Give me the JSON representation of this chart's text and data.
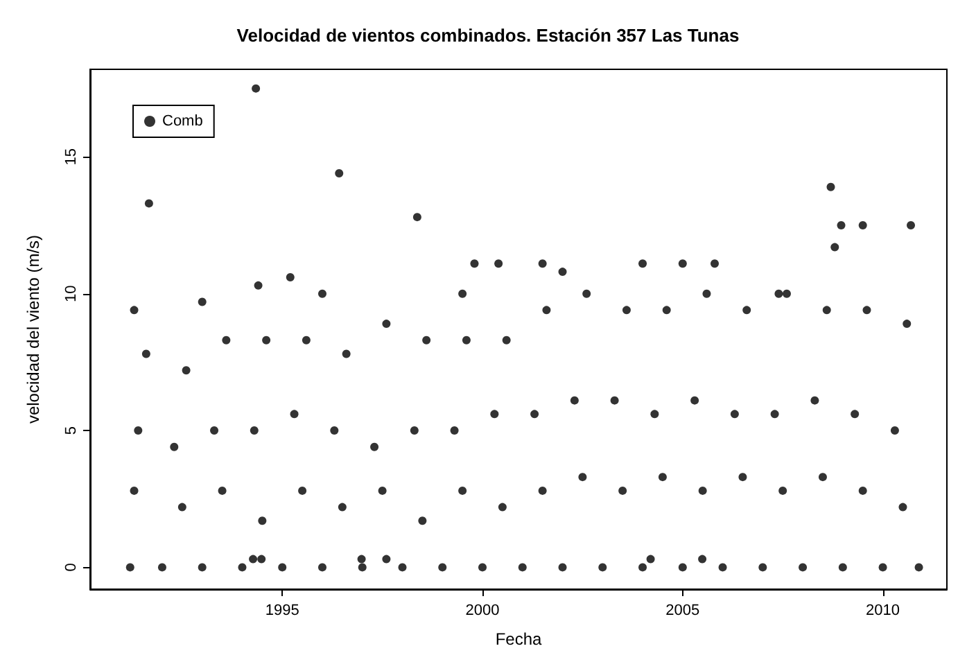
{
  "chart_data": {
    "type": "scatter",
    "title": "Velocidad de vientos combinados. Estación 357 Las Tunas",
    "xlabel": "Fecha",
    "ylabel": "velocidad del viento (m/s)",
    "xlim": [
      1990.2,
      2011.6
    ],
    "xticks": [
      1995,
      2000,
      2005,
      2010
    ],
    "ylim": [
      -0.8,
      18.2
    ],
    "yticks": [
      0,
      5,
      10,
      15
    ],
    "grid": false,
    "legend": "top left",
    "marker": "circle",
    "series": [
      {
        "name": "Comb",
        "color": "#000000",
        "x": [
          1991.2,
          1992,
          1993,
          1994,
          1995,
          1996,
          1997,
          1998,
          1999,
          2000,
          2001,
          2002,
          2003,
          2004,
          2005,
          2006,
          2007,
          2008,
          2009,
          2010,
          2010.9,
          1991.3,
          1992.5,
          1993.5,
          1994.5,
          1995.5,
          1996.5,
          1997.5,
          1998.5,
          1999.5,
          2000.5,
          2001.5,
          2002.5,
          2003.5,
          2004.5,
          2005.5,
          2006.5,
          2007.5,
          2008.5,
          2009.5,
          2010.5,
          1991.4,
          1992.3,
          1993.3,
          1994.3,
          1995.3,
          1996.3,
          1997.3,
          1998.3,
          1999.3,
          2000.3,
          2001.3,
          2002.3,
          2003.3,
          2004.3,
          2005.3,
          2006.3,
          2007.3,
          2008.3,
          2009.3,
          2010.3,
          1991.6,
          1992.6,
          1993.6,
          1994.6,
          1995.6,
          1996.6,
          1997.6,
          1998.6,
          1999.6,
          2000.6,
          2001.6,
          2002.6,
          2003.6,
          2004.6,
          2005.6,
          2006.6,
          2007.6,
          2008.6,
          2009.6,
          2010.6,
          1991.67,
          1994.34,
          1996.42,
          1998.37,
          2008.7,
          2008.96,
          2009.5,
          2010.7,
          1991.3,
          1993,
          1994.4,
          1995.2,
          1996,
          1999.5,
          1999.8,
          2000.4,
          2001.5,
          2002,
          2004,
          2005,
          2005.8,
          2007.4,
          2008.8,
          1994.27,
          1994.48,
          1996.98,
          1997.6,
          2004.2,
          2005.49
        ],
        "values": [
          0,
          0,
          0,
          0,
          0,
          0,
          0,
          0,
          0,
          0,
          0,
          0,
          0,
          0,
          0,
          0,
          0,
          0,
          0,
          0,
          0,
          2.8,
          2.2,
          2.8,
          1.7,
          2.8,
          2.2,
          2.8,
          1.7,
          2.8,
          2.2,
          2.8,
          3.3,
          2.8,
          3.3,
          2.8,
          3.3,
          2.8,
          3.3,
          2.8,
          2.2,
          5,
          4.4,
          5,
          5,
          5.6,
          5,
          4.4,
          5,
          5,
          5.6,
          5.6,
          6.1,
          6.1,
          5.6,
          6.1,
          5.6,
          5.6,
          6.1,
          5.6,
          5,
          7.8,
          7.2,
          8.3,
          8.3,
          8.3,
          7.8,
          8.9,
          8.3,
          8.3,
          8.3,
          9.4,
          10,
          9.4,
          9.4,
          10,
          9.4,
          10,
          9.4,
          9.4,
          8.9,
          13.3,
          17.5,
          14.4,
          12.8,
          13.9,
          12.5,
          12.5,
          12.5,
          9.4,
          9.7,
          10.3,
          10.6,
          10,
          10,
          11.1,
          11.1,
          11.1,
          10.8,
          11.1,
          11.1,
          11.1,
          10,
          11.7,
          0.3,
          0.3,
          0.3,
          0.3,
          0.3,
          0.3
        ]
      }
    ]
  }
}
